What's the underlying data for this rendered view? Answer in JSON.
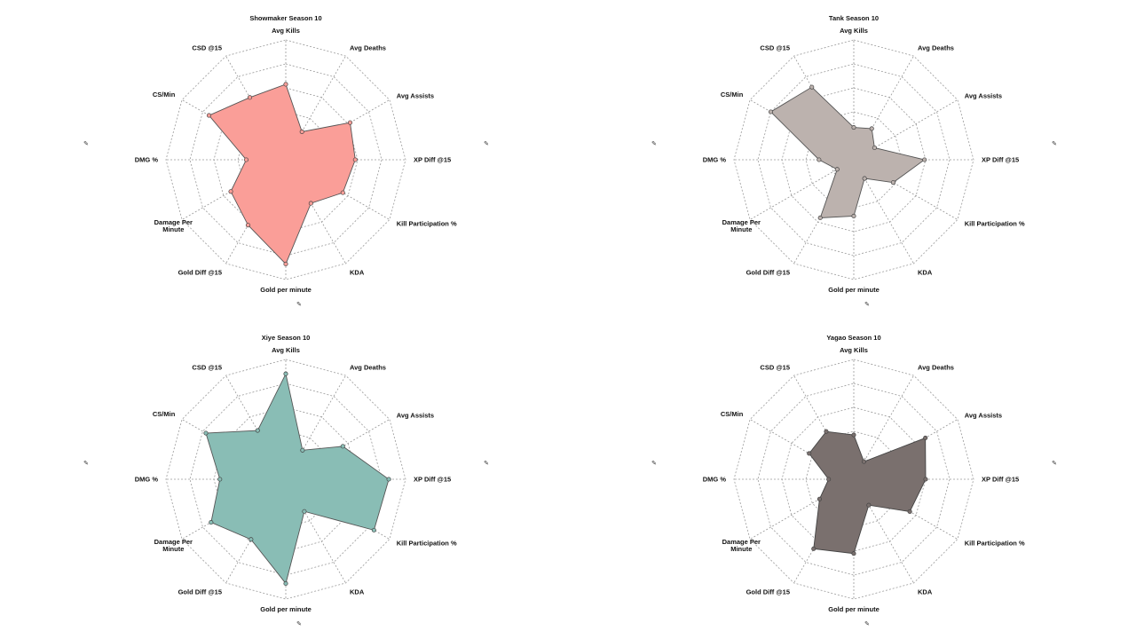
{
  "chart_data": [
    {
      "type": "radar",
      "title": "Showmaker Season 10",
      "axes": [
        "Avg Kills",
        "Avg Deaths",
        "Avg Assists",
        "XP Diff @15",
        "Kill Participation %",
        "KDA",
        "Gold per minute",
        "Gold Diff @15",
        "Damage Per Minute",
        "DMG %",
        "CS/Min",
        "CSD @15"
      ],
      "values": [
        0.63,
        0.27,
        0.62,
        0.58,
        0.55,
        0.42,
        0.87,
        0.63,
        0.53,
        0.33,
        0.74,
        0.6
      ],
      "range": [
        0,
        1
      ],
      "color": "#fa9e98",
      "edge_color": "#555555",
      "grid": true
    },
    {
      "type": "radar",
      "title": "Tank Season 10",
      "axes": [
        "Avg Kills",
        "Avg Deaths",
        "Avg Assists",
        "XP Diff @15",
        "Kill Participation %",
        "KDA",
        "Gold per minute",
        "Gold Diff @15",
        "Damage Per Minute",
        "DMG %",
        "CS/Min",
        "CSD @15"
      ],
      "values": [
        0.27,
        0.3,
        0.2,
        0.59,
        0.38,
        0.18,
        0.47,
        0.56,
        0.16,
        0.29,
        0.8,
        0.7
      ],
      "range": [
        0,
        1
      ],
      "color": "#bcb2ae",
      "edge_color": "#555555",
      "grid": true
    },
    {
      "type": "radar",
      "title": "Xiye Season 10",
      "axes": [
        "Avg Kills",
        "Avg Deaths",
        "Avg Assists",
        "XP Diff @15",
        "Kill Participation %",
        "KDA",
        "Gold per minute",
        "Gold Diff @15",
        "Damage Per Minute",
        "DMG %",
        "CS/Min",
        "CSD @15"
      ],
      "values": [
        0.88,
        0.28,
        0.55,
        0.86,
        0.85,
        0.31,
        0.87,
        0.58,
        0.72,
        0.55,
        0.77,
        0.47
      ],
      "range": [
        0,
        1
      ],
      "color": "#89bdb5",
      "edge_color": "#555555",
      "grid": true
    },
    {
      "type": "radar",
      "title": "Yagao Season 10",
      "axes": [
        "Avg Kills",
        "Avg Deaths",
        "Avg Assists",
        "XP Diff @15",
        "Kill Participation %",
        "KDA",
        "Gold per minute",
        "Gold Diff @15",
        "Damage Per Minute",
        "DMG %",
        "CS/Min",
        "CSD @15"
      ],
      "values": [
        0.37,
        0.17,
        0.69,
        0.6,
        0.54,
        0.25,
        0.62,
        0.67,
        0.33,
        0.21,
        0.43,
        0.46
      ],
      "range": [
        0,
        1
      ],
      "color": "#7a706e",
      "edge_color": "#444444",
      "grid": true
    }
  ]
}
